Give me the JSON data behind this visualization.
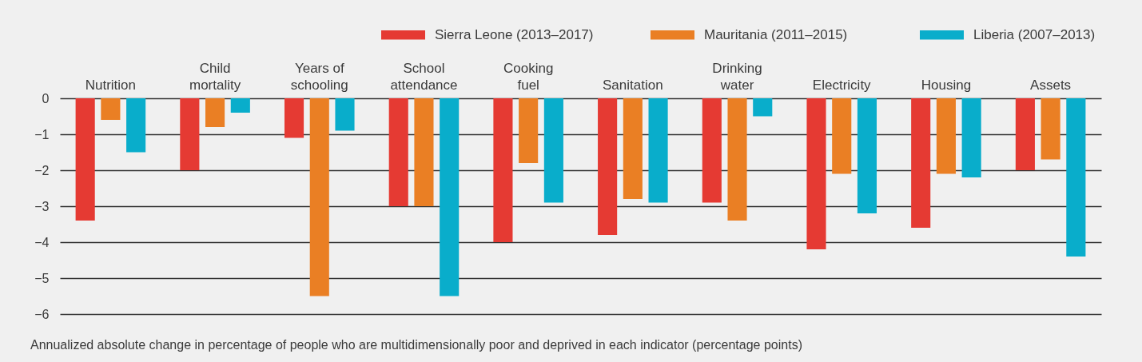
{
  "chart_data": {
    "type": "bar",
    "categories": [
      "Nutrition",
      "Child mortality",
      "Years of schooling",
      "School attendance",
      "Cooking fuel",
      "Sanitation",
      "Drinking water",
      "Electricity",
      "Housing",
      "Assets"
    ],
    "series": [
      {
        "name": "Sierra Leone (2013–2017)",
        "color": "#e53a33",
        "values": [
          -3.4,
          -2.0,
          -1.1,
          -3.0,
          -4.0,
          -3.8,
          -2.9,
          -4.2,
          -3.6,
          -2.0
        ]
      },
      {
        "name": "Mauritania (2011–2015)",
        "color": "#ea7f24",
        "values": [
          -0.6,
          -0.8,
          -5.5,
          -3.0,
          -1.8,
          -2.8,
          -3.4,
          -2.1,
          -2.1,
          -1.7
        ]
      },
      {
        "name": "Liberia (2007–2013)",
        "color": "#09adcb",
        "values": [
          -1.5,
          -0.4,
          -0.9,
          -5.5,
          -2.9,
          -2.9,
          -0.5,
          -3.2,
          -2.2,
          -4.4
        ]
      }
    ],
    "ylim": [
      -6,
      0
    ],
    "yticks": [
      0,
      -1,
      -2,
      -3,
      -4,
      -5,
      -6
    ],
    "grid": "y",
    "legend": "top right",
    "annotations": [
      "Annualized absolute change in percentage of people who are multidimensionally poor and deprived in each indicator (percentage points)"
    ]
  }
}
